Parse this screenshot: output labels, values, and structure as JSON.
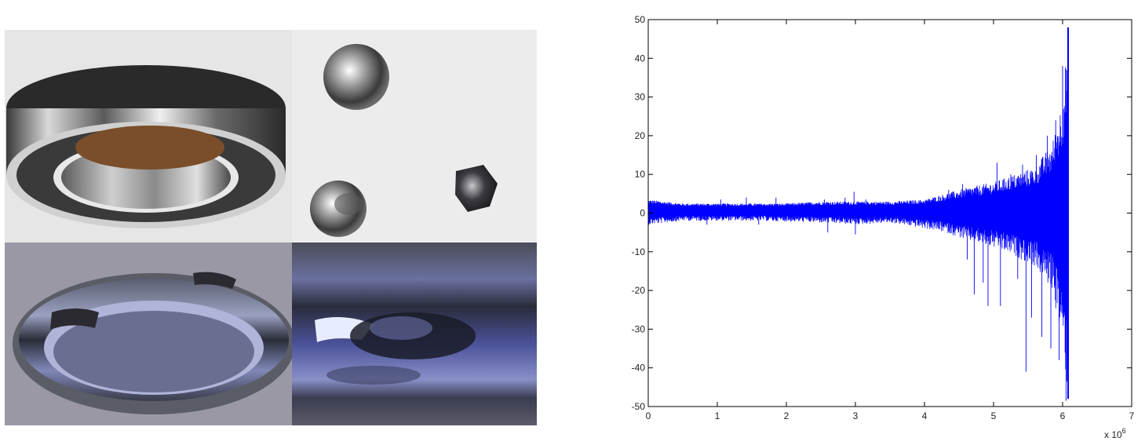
{
  "colors": {
    "signal": "#0000ff",
    "axis": "#000000",
    "background": "#ffffff"
  },
  "photos": [
    {
      "name": "bearing-assembly-photo"
    },
    {
      "name": "damaged-balls-photo"
    },
    {
      "name": "outer-race-spall-photo"
    },
    {
      "name": "spall-closeup-photo"
    }
  ],
  "chart_data": {
    "type": "line",
    "series": [
      {
        "color": "#0000ff",
        "envelope": [
          {
            "x": 0.0,
            "upper": 3.5,
            "lower": -3.0
          },
          {
            "x": 0.5,
            "upper": 2.5,
            "lower": -2.0
          },
          {
            "x": 1.0,
            "upper": 2.5,
            "lower": -2.0
          },
          {
            "x": 1.5,
            "upper": 2.5,
            "lower": -2.0
          },
          {
            "x": 2.0,
            "upper": 2.5,
            "lower": -2.2
          },
          {
            "x": 2.5,
            "upper": 3.0,
            "lower": -2.5
          },
          {
            "x": 3.0,
            "upper": 3.0,
            "lower": -3.0
          },
          {
            "x": 3.5,
            "upper": 3.0,
            "lower": -2.5
          },
          {
            "x": 4.0,
            "upper": 3.5,
            "lower": -4.0
          },
          {
            "x": 4.3,
            "upper": 5.0,
            "lower": -5.0
          },
          {
            "x": 4.6,
            "upper": 6.5,
            "lower": -7.0
          },
          {
            "x": 5.0,
            "upper": 8.0,
            "lower": -9.0
          },
          {
            "x": 5.3,
            "upper": 10.0,
            "lower": -11.0
          },
          {
            "x": 5.6,
            "upper": 12.0,
            "lower": -14.0
          },
          {
            "x": 5.85,
            "upper": 18.0,
            "lower": -20.0
          },
          {
            "x": 6.0,
            "upper": 30.0,
            "lower": -35.0
          },
          {
            "x": 6.08,
            "upper": 48.0,
            "lower": -48.0
          },
          {
            "x": 6.09,
            "upper": 0.0,
            "lower": 0.0
          }
        ],
        "spikes": [
          {
            "x": 0.85,
            "y": -3.0
          },
          {
            "x": 1.05,
            "y": 3.5
          },
          {
            "x": 1.42,
            "y": 4.0
          },
          {
            "x": 1.6,
            "y": -3.0
          },
          {
            "x": 1.85,
            "y": 4.0
          },
          {
            "x": 2.55,
            "y": 3.5
          },
          {
            "x": 2.6,
            "y": -5.0
          },
          {
            "x": 2.85,
            "y": 4.0
          },
          {
            "x": 2.98,
            "y": 5.5
          },
          {
            "x": 3.0,
            "y": -5.5
          },
          {
            "x": 3.15,
            "y": 3.5
          },
          {
            "x": 4.35,
            "y": 6.0
          },
          {
            "x": 4.55,
            "y": 7.5
          },
          {
            "x": 4.62,
            "y": -12.0
          },
          {
            "x": 4.72,
            "y": -21.0
          },
          {
            "x": 4.85,
            "y": -18.0
          },
          {
            "x": 4.92,
            "y": -24.0
          },
          {
            "x": 5.05,
            "y": 13.0
          },
          {
            "x": 5.1,
            "y": -24.0
          },
          {
            "x": 5.18,
            "y": 8.0
          },
          {
            "x": 5.25,
            "y": 10.0
          },
          {
            "x": 5.35,
            "y": -17.0
          },
          {
            "x": 5.42,
            "y": 12.5
          },
          {
            "x": 5.47,
            "y": -41.0
          },
          {
            "x": 5.55,
            "y": -27.0
          },
          {
            "x": 5.62,
            "y": 15.0
          },
          {
            "x": 5.7,
            "y": -32.0
          },
          {
            "x": 5.78,
            "y": 20.0
          },
          {
            "x": 5.83,
            "y": -35.0
          },
          {
            "x": 5.9,
            "y": 24.0
          },
          {
            "x": 5.95,
            "y": -38.0
          },
          {
            "x": 6.0,
            "y": 38.0
          },
          {
            "x": 6.05,
            "y": -48.5
          }
        ]
      }
    ],
    "xlim": [
      0,
      7
    ],
    "ylim": [
      -50,
      50
    ],
    "xticks": [
      "0",
      "1",
      "2",
      "3",
      "4",
      "5",
      "6",
      "7"
    ],
    "yticks": [
      "50",
      "40",
      "30",
      "20",
      "10",
      "0",
      "-10",
      "-20",
      "-30",
      "-40",
      "-50"
    ],
    "xscale_label": {
      "base": "x 10",
      "exp": "6"
    },
    "grid": false
  }
}
